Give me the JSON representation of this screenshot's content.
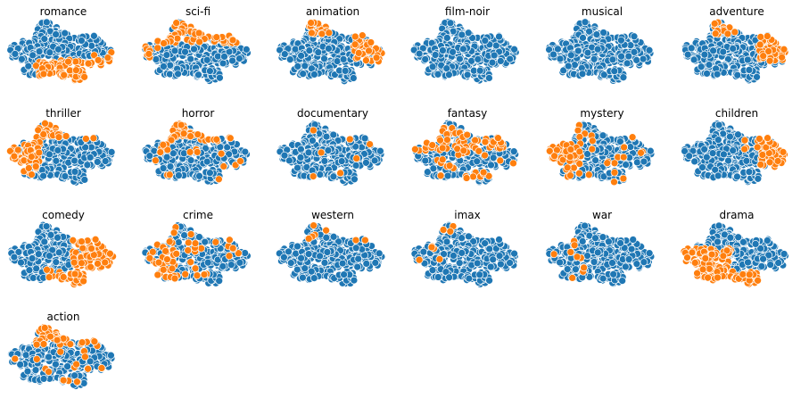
{
  "figure": {
    "background": "#ffffff"
  },
  "chart_data": {
    "type": "scatter",
    "layout": "small multiples, 4 rows x 6 columns (19 panels)",
    "axes_visible": false,
    "grid": false,
    "legend": "none",
    "colors": {
      "genre": "#ff7f0e",
      "other": "#1f77b4",
      "edge": "#ffffff"
    },
    "panels": [
      {
        "title": "romance",
        "highlight": "south-east"
      },
      {
        "title": "sci-fi",
        "highlight": "top-band"
      },
      {
        "title": "animation",
        "highlight": "north-east"
      },
      {
        "title": "film-noir",
        "highlight": "none"
      },
      {
        "title": "musical",
        "highlight": "none"
      },
      {
        "title": "adventure",
        "highlight": "north-east"
      },
      {
        "title": "thriller",
        "highlight": "west"
      },
      {
        "title": "horror",
        "highlight": "north"
      },
      {
        "title": "documentary",
        "highlight": "center-few"
      },
      {
        "title": "fantasy",
        "highlight": "north-scattered"
      },
      {
        "title": "mystery",
        "highlight": "west-scattered"
      },
      {
        "title": "children",
        "highlight": "east"
      },
      {
        "title": "comedy",
        "highlight": "south-east-large"
      },
      {
        "title": "crime",
        "highlight": "west-scattered"
      },
      {
        "title": "western",
        "highlight": "north-few"
      },
      {
        "title": "imax",
        "highlight": "north-west-few"
      },
      {
        "title": "war",
        "highlight": "west-few"
      },
      {
        "title": "drama",
        "highlight": "south-west-large"
      },
      {
        "title": "action",
        "highlight": "north"
      }
    ]
  }
}
